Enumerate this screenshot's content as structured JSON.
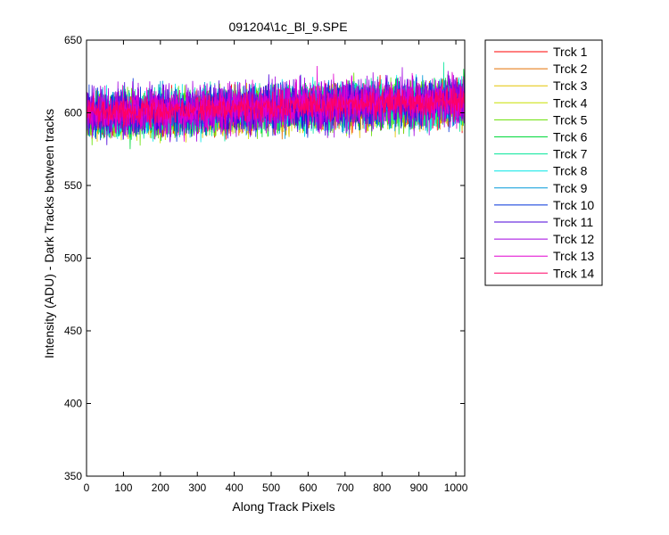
{
  "chart_data": {
    "type": "line",
    "title": "091204\\1c_Bl_9.SPE",
    "xlabel": "Along Track Pixels",
    "ylabel": "Intensity (ADU) - Dark Tracks between tracks",
    "xlim": [
      0,
      1024
    ],
    "ylim": [
      350,
      650
    ],
    "xticks": [
      0,
      100,
      200,
      300,
      400,
      500,
      600,
      700,
      800,
      900,
      1000
    ],
    "yticks": [
      350,
      400,
      450,
      500,
      550,
      600,
      650
    ],
    "grid": false,
    "legend_position": "outside-right",
    "points_per_series": 1024,
    "series": [
      {
        "name": "Trck 1",
        "color": "#ff0000",
        "base_start": 597,
        "base_end": 606,
        "noise": 7
      },
      {
        "name": "Trck 2",
        "color": "#e46f00",
        "base_start": 596,
        "base_end": 605,
        "noise": 7
      },
      {
        "name": "Trck 3",
        "color": "#e3c400",
        "base_start": 596,
        "base_end": 604,
        "noise": 7
      },
      {
        "name": "Trck 4",
        "color": "#c8e000",
        "base_start": 597,
        "base_end": 605,
        "noise": 7
      },
      {
        "name": "Trck 5",
        "color": "#66e000",
        "base_start": 598,
        "base_end": 607,
        "noise": 8
      },
      {
        "name": "Trck 6",
        "color": "#00d93a",
        "base_start": 598,
        "base_end": 607,
        "noise": 8
      },
      {
        "name": "Trck 7",
        "color": "#00e69a",
        "base_start": 598,
        "base_end": 607,
        "noise": 8
      },
      {
        "name": "Trck 8",
        "color": "#00e6e6",
        "base_start": 598,
        "base_end": 608,
        "noise": 8
      },
      {
        "name": "Trck 9",
        "color": "#0099d9",
        "base_start": 599,
        "base_end": 608,
        "noise": 8
      },
      {
        "name": "Trck 10",
        "color": "#0030d9",
        "base_start": 599,
        "base_end": 608,
        "noise": 8
      },
      {
        "name": "Trck 11",
        "color": "#4b00d9",
        "base_start": 599,
        "base_end": 608,
        "noise": 8
      },
      {
        "name": "Trck 12",
        "color": "#a000e0",
        "base_start": 599,
        "base_end": 609,
        "noise": 9
      },
      {
        "name": "Trck 13",
        "color": "#e000d0",
        "base_start": 600,
        "base_end": 609,
        "noise": 8
      },
      {
        "name": "Trck 14",
        "color": "#ff0066",
        "base_start": 600,
        "base_end": 608,
        "noise": 5
      }
    ]
  }
}
